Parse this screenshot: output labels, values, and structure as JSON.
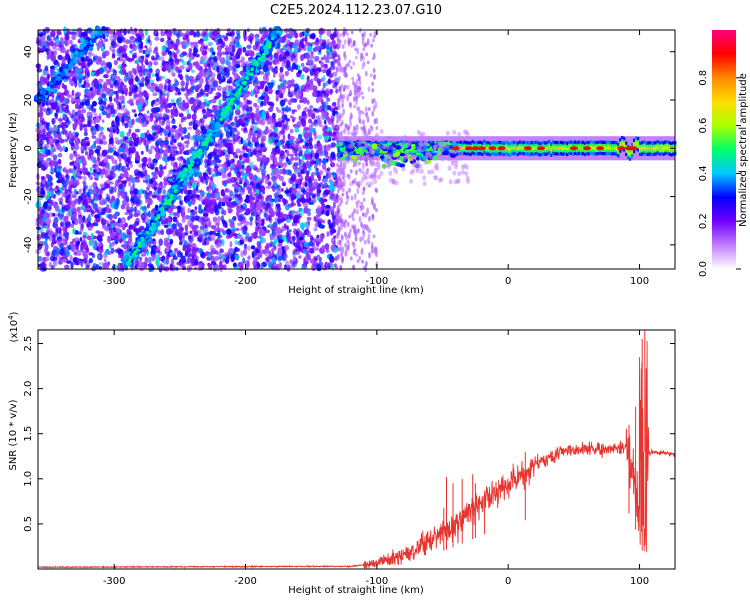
{
  "title": "C2E5.2024.112.23.07.G10",
  "chart_data": [
    {
      "type": "heatmap",
      "xlabel": "Height of straight line (km)",
      "ylabel": "Frequency (Hz)",
      "xlim": [
        -358,
        127
      ],
      "ylim": [
        -50,
        49
      ],
      "xticks": [
        -300,
        -200,
        -100,
        0,
        100
      ],
      "yticks": [
        -40,
        -20,
        0,
        20,
        40
      ],
      "grid": false,
      "colorbar": {
        "label": "Normalized spectral amplitude",
        "range": [
          0,
          1
        ],
        "ticks": [
          0.0,
          0.2,
          0.4,
          0.6,
          0.8
        ],
        "colors": [
          "#ffffff",
          "#c27cff",
          "#7000ff",
          "#0000ff",
          "#00c8ff",
          "#00ff66",
          "#aaff00",
          "#ffdd00",
          "#ff8800",
          "#ff0000",
          "#ff0080"
        ]
      },
      "features": {
        "noise_region_x": [
          -358,
          -130
        ],
        "sparse_noise_x": [
          -130,
          -100
        ],
        "diagonal_track": {
          "x_start": -290,
          "y_start": -48,
          "x_end": -175,
          "y_end": 49
        },
        "upper_left_track": {
          "x_start": -358,
          "y_start": 20,
          "x_end": -310,
          "y_end": 49
        },
        "signal_band": {
          "x_start": -130,
          "x_end": 127,
          "center_hz": 0,
          "half_width_hz": 3
        },
        "scatter_cluster_x": [
          -130,
          -40
        ]
      }
    },
    {
      "type": "line",
      "xlabel": "Height of straight line (km)",
      "ylabel": "SNR (10 * v/v)",
      "ymultiplier": "(x10",
      "ymultiplier_exp": "4",
      "ymultiplier_close": ")",
      "xlim": [
        -358,
        127
      ],
      "ylim": [
        0,
        2.65
      ],
      "xticks": [
        -300,
        -200,
        -100,
        0,
        100
      ],
      "yticks": [
        0.5,
        1.0,
        1.5,
        2.0,
        2.5
      ],
      "color": "#e8342e",
      "grid": false,
      "envelope": {
        "x": [
          -358,
          -120,
          -100,
          -80,
          -60,
          -40,
          -20,
          0,
          20,
          40,
          60,
          80,
          90,
          96,
          100,
          104,
          106,
          110,
          127
        ],
        "y": [
          0.02,
          0.03,
          0.06,
          0.15,
          0.3,
          0.5,
          0.75,
          0.95,
          1.15,
          1.3,
          1.33,
          1.33,
          1.35,
          1.0,
          0.5,
          2.6,
          1.28,
          1.3,
          1.27
        ]
      },
      "spikes": [
        {
          "x": -49,
          "y": 0.68
        },
        {
          "x": -47,
          "y": 1.02
        },
        {
          "x": -42,
          "y": 0.95
        },
        {
          "x": -35,
          "y": 1.0
        },
        {
          "x": -27,
          "y": 1.05
        },
        {
          "x": -25,
          "y": 0.95
        },
        {
          "x": -18,
          "y": 0.8
        },
        {
          "x": 13,
          "y": 1.3
        },
        {
          "x": 92,
          "y": 1.6
        },
        {
          "x": 97,
          "y": 1.8
        },
        {
          "x": 102,
          "y": 2.55
        },
        {
          "x": 104,
          "y": 2.65
        }
      ]
    }
  ]
}
